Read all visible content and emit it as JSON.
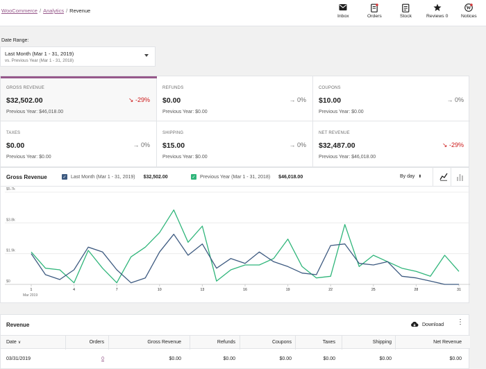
{
  "breadcrumb": {
    "items": [
      "WooCommerce",
      "Analytics"
    ],
    "current": "Revenue"
  },
  "topnav": [
    {
      "label": "Inbox",
      "icon": "inbox-icon"
    },
    {
      "label": "Orders",
      "icon": "orders-icon"
    },
    {
      "label": "Stock",
      "icon": "stock-icon"
    },
    {
      "label": "Reviews 0",
      "icon": "star-icon"
    },
    {
      "label": "Notices",
      "icon": "wordpress-icon"
    }
  ],
  "date_range": {
    "label": "Date Range:",
    "main": "Last Month (Mar 1 - 31, 2019)",
    "compare": "vs. Previous Year (Mar 1 - 31, 2018)"
  },
  "summary": [
    {
      "label": "GROSS REVENUE",
      "value": "$32,502.00",
      "delta": "-29%",
      "prev": "Previous Year: $46,018.00",
      "negative": true
    },
    {
      "label": "REFUNDS",
      "value": "$0.00",
      "delta": "0%",
      "prev": "Previous Year: $0.00",
      "negative": false
    },
    {
      "label": "COUPONS",
      "value": "$10.00",
      "delta": "0%",
      "prev": "Previous Year: $0.00",
      "negative": false
    },
    {
      "label": "TAXES",
      "value": "$0.00",
      "delta": "0%",
      "prev": "Previous Year: $0.00",
      "negative": false
    },
    {
      "label": "SHIPPING",
      "value": "$15.00",
      "delta": "0%",
      "prev": "Previous Year: $0.00",
      "negative": false
    },
    {
      "label": "NET REVENUE",
      "value": "$32,487.00",
      "delta": "-29%",
      "prev": "Previous Year: $46,018.00",
      "negative": true
    }
  ],
  "chart_header": {
    "title": "Gross Revenue",
    "legend": [
      {
        "name": "Last Month (Mar 1 - 31, 2019)",
        "total": "$32,502.00",
        "color": "#3d5a80"
      },
      {
        "name": "Previous Year (Mar 1 - 31, 2018)",
        "total": "$46,018.00",
        "color": "#2fb57a"
      }
    ],
    "interval": "By day"
  },
  "chart_data": {
    "type": "line",
    "x": [
      1,
      2,
      3,
      4,
      5,
      6,
      7,
      8,
      9,
      10,
      11,
      12,
      13,
      14,
      15,
      16,
      17,
      18,
      19,
      20,
      21,
      22,
      23,
      24,
      25,
      26,
      27,
      28,
      29,
      30,
      31
    ],
    "x_ticks": [
      1,
      4,
      7,
      10,
      13,
      16,
      19,
      22,
      25,
      28,
      31
    ],
    "x_tick_labels": [
      "1",
      "4",
      "7",
      "10",
      "13",
      "16",
      "19",
      "22",
      "25",
      "28",
      "31"
    ],
    "x_sub_label": "Mar 2019",
    "y_ticks": [
      0,
      1900,
      3800,
      5700
    ],
    "y_tick_labels": [
      "$0",
      "$1.9k",
      "$3.8k",
      "$5.7k"
    ],
    "ylim": [
      0,
      5700
    ],
    "series": [
      {
        "name": "Last Month (Mar 1 - 31, 2019)",
        "color": "#3d5a80",
        "values": [
          1900,
          600,
          300,
          900,
          2300,
          2000,
          900,
          100,
          400,
          2000,
          3100,
          1800,
          2500,
          1000,
          1600,
          1300,
          2000,
          1400,
          1100,
          700,
          600,
          2400,
          2500,
          1300,
          1200,
          1400,
          500,
          400,
          200,
          0,
          0
        ]
      },
      {
        "name": "Previous Year (Mar 1 - 31, 2018)",
        "color": "#2fb57a",
        "values": [
          2000,
          1000,
          900,
          100,
          2100,
          1000,
          100,
          1700,
          2300,
          3200,
          4600,
          2600,
          3600,
          200,
          900,
          1200,
          1200,
          1600,
          2800,
          1100,
          400,
          500,
          3700,
          1100,
          1800,
          1400,
          1000,
          800,
          500,
          1800,
          800
        ]
      }
    ]
  },
  "table": {
    "title": "Revenue",
    "download_label": "Download",
    "columns": [
      "Date",
      "Orders",
      "Gross Revenue",
      "Refunds",
      "Coupons",
      "Taxes",
      "Shipping",
      "Net Revenue"
    ],
    "rows": [
      [
        "03/31/2019",
        "0",
        "$0.00",
        "$0.00",
        "$0.00",
        "$0.00",
        "$0.00",
        "$0.00"
      ]
    ]
  }
}
